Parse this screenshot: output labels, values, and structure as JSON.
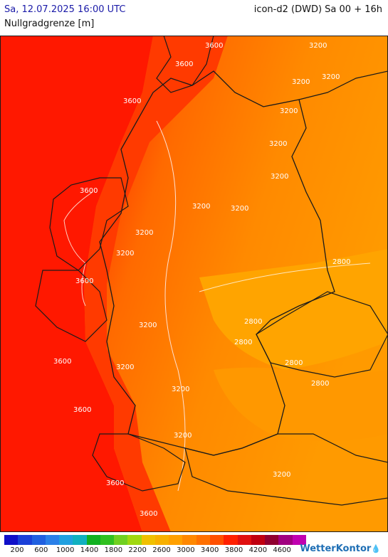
{
  "header": {
    "datetime": "Sa, 12.07.2025 16:00 UTC",
    "model": "icon-d2 (DWD) Sa 00 + 16h",
    "parameter": "Nullgradgrenze [m]"
  },
  "map": {
    "contour_labels": [
      {
        "text": "3600"
      },
      {
        "text": "3600"
      },
      {
        "text": "3600"
      },
      {
        "text": "3600"
      },
      {
        "text": "3600"
      },
      {
        "text": "3600"
      },
      {
        "text": "3600"
      },
      {
        "text": "3600"
      },
      {
        "text": "3600"
      },
      {
        "text": "3200"
      },
      {
        "text": "3200"
      },
      {
        "text": "3200"
      },
      {
        "text": "3200"
      },
      {
        "text": "3200"
      },
      {
        "text": "3200"
      },
      {
        "text": "3200"
      },
      {
        "text": "3200"
      },
      {
        "text": "3200"
      },
      {
        "text": "3200"
      },
      {
        "text": "3200"
      },
      {
        "text": "3200"
      },
      {
        "text": "3200"
      },
      {
        "text": "3200"
      },
      {
        "text": "3200"
      },
      {
        "text": "2800"
      },
      {
        "text": "2800"
      },
      {
        "text": "2800"
      },
      {
        "text": "2800"
      },
      {
        "text": "2800"
      }
    ]
  },
  "legend": {
    "colors": [
      "#1010c8",
      "#1a40d8",
      "#2060e0",
      "#2a80e8",
      "#20a0e0",
      "#10b0c0",
      "#10b020",
      "#30c020",
      "#70d020",
      "#a0d810",
      "#f0c000",
      "#f8b000",
      "#ffa000",
      "#ff8800",
      "#ff7000",
      "#ff5000",
      "#ff2000",
      "#e01010",
      "#c00010",
      "#900030",
      "#a00080",
      "#c000b0"
    ],
    "tick_labels": [
      "200",
      "600",
      "1000",
      "1400",
      "1800",
      "2200",
      "2600",
      "3000",
      "3400",
      "3800",
      "4200",
      "4600"
    ],
    "brand": "WetterKontor"
  }
}
